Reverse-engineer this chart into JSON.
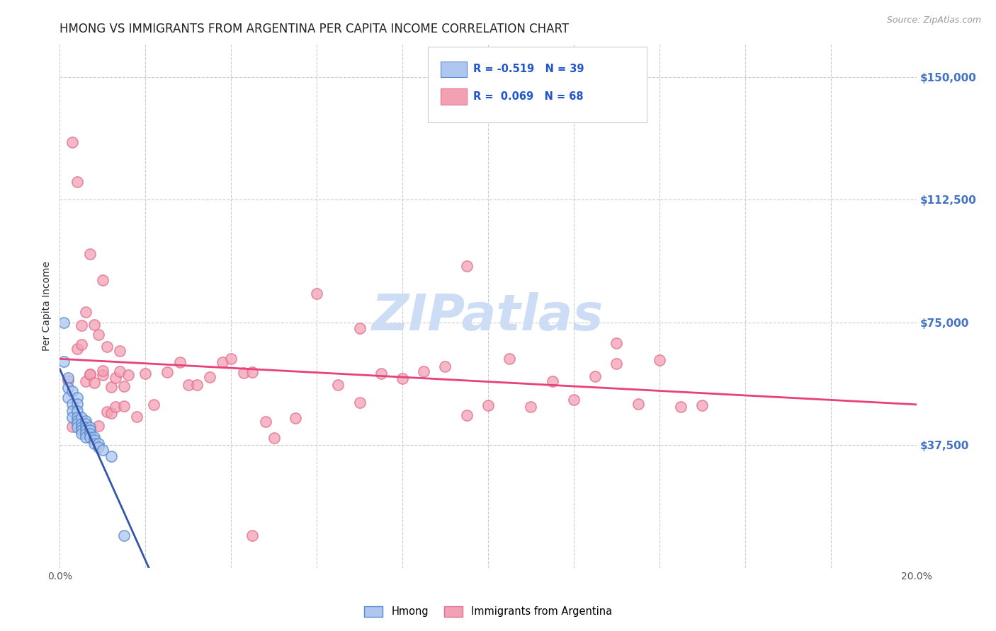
{
  "title": "HMONG VS IMMIGRANTS FROM ARGENTINA PER CAPITA INCOME CORRELATION CHART",
  "source": "Source: ZipAtlas.com",
  "ylabel": "Per Capita Income",
  "ytick_labels": [
    "$37,500",
    "$75,000",
    "$112,500",
    "$150,000"
  ],
  "ytick_values": [
    37500,
    75000,
    112500,
    150000
  ],
  "ylim": [
    0,
    160000
  ],
  "xlim": [
    0.0,
    0.2
  ],
  "watermark": "ZIPatlas",
  "color_hmong_fill": "#aec6f0",
  "color_hmong_edge": "#5588cc",
  "color_arg_fill": "#f4a0b4",
  "color_arg_edge": "#e07090",
  "line_color_hmong": "#3355aa",
  "line_color_argentina": "#e8407a",
  "title_fontsize": 12,
  "axis_label_fontsize": 10,
  "tick_fontsize": 10,
  "watermark_fontsize": 52,
  "watermark_color": "#ccddf5",
  "background_color": "#ffffff",
  "grid_color": "#cccccc",
  "xtick_vals": [
    0.0,
    0.02,
    0.04,
    0.06,
    0.08,
    0.1,
    0.12,
    0.14,
    0.16,
    0.18,
    0.2
  ],
  "xtick_labels": [
    "0.0%",
    "",
    "",
    "",
    "",
    "",
    "",
    "",
    "",
    "",
    "20.0%"
  ]
}
